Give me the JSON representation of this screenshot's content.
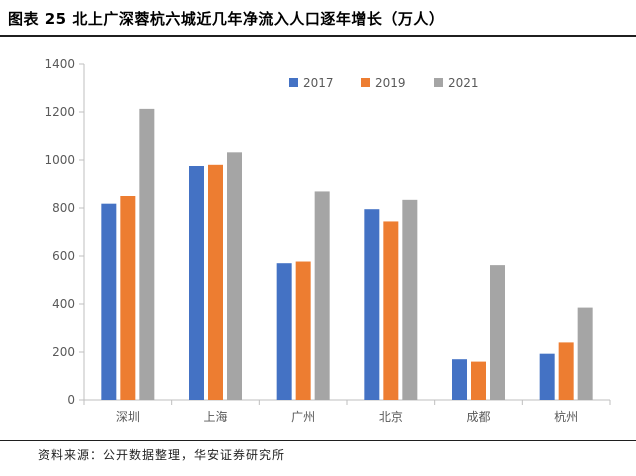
{
  "header": {
    "title": "图表 25  北上广深蓉杭六城近几年净流入人口逐年增长（万人）"
  },
  "footer": {
    "source": "资料来源：公开数据整理，华安证券研究所"
  },
  "chart_data": {
    "type": "bar",
    "title": "",
    "xlabel": "",
    "ylabel": "",
    "ylim": [
      0,
      1400
    ],
    "yticks": [
      0,
      200,
      400,
      600,
      800,
      1000,
      1200,
      1400
    ],
    "grid": false,
    "legend": "top-right",
    "categories": [
      "深圳",
      "上海",
      "广州",
      "北京",
      "成都",
      "杭州"
    ],
    "series": [
      {
        "name": "2017",
        "color": "#4472C4",
        "values": [
          818,
          975,
          570,
          795,
          170,
          193
        ]
      },
      {
        "name": "2019",
        "color": "#ED7D31",
        "values": [
          850,
          980,
          577,
          744,
          160,
          240
        ]
      },
      {
        "name": "2021",
        "color": "#A5A5A5",
        "values": [
          1213,
          1032,
          869,
          834,
          562,
          385
        ]
      }
    ]
  }
}
